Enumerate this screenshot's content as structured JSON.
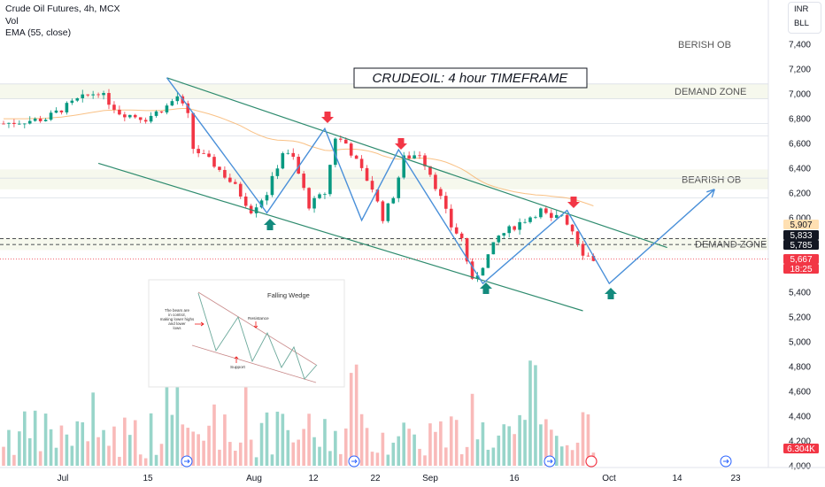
{
  "legend": {
    "symbol": "Crude Oil Futures, 4h, MCX",
    "vol": "Vol",
    "ema": "EMA (55, close)"
  },
  "toolbar": {
    "currency": "INR",
    "lot": "BLL"
  },
  "chart_data": {
    "type": "candlestick",
    "title": "CRUDEOIL: 4 hour TIMEFRAME",
    "y_ticks": [
      4000,
      4200,
      4400,
      4600,
      4800,
      5000,
      5200,
      5400,
      5600,
      5800,
      6000,
      6200,
      6400,
      6600,
      6800,
      7000,
      7200,
      7400
    ],
    "x_ticks": [
      "Jul",
      "15",
      "Aug",
      "12",
      "22",
      "Sep",
      "16",
      "Oct",
      "14",
      "23"
    ],
    "zones": [
      {
        "label": "BERISH OB",
        "y": [
          7400,
          7400
        ]
      },
      {
        "label": "DEMAND ZONE",
        "y": [
          6960,
          7080
        ]
      },
      {
        "label": "BEARISH OB",
        "y": [
          6230,
          6390
        ]
      },
      {
        "label": "DEMAND ZONE",
        "y": [
          5740,
          5840
        ]
      }
    ],
    "price_labels": [
      {
        "value": "5,907",
        "color": "#ffe0b2",
        "text_color": "#131722"
      },
      {
        "value": "5,833",
        "color": "#131722",
        "text_color": "#ffffff"
      },
      {
        "value": "5,785",
        "color": "#131722",
        "text_color": "#ffffff"
      },
      {
        "value": "5,667",
        "color": "#f23645",
        "text_color": "#ffffff"
      },
      {
        "value": "18:25",
        "color": "#f23645",
        "text_color": "#ffffff"
      },
      {
        "value": "6.304K",
        "color": "#f23645",
        "text_color": "#ffffff"
      }
    ],
    "swing_path": [
      [
        2,
        7130
      ],
      [
        17,
        6040
      ],
      [
        29,
        6680
      ],
      [
        37,
        5970
      ],
      [
        48,
        6550
      ],
      [
        62,
        5470
      ],
      [
        81,
        6060
      ],
      [
        89,
        5470
      ],
      [
        108,
        6230
      ]
    ],
    "channel_upper": [
      [
        2,
        7120
      ],
      [
        112,
        5770
      ]
    ],
    "channel_lower": [
      [
        2,
        6460
      ],
      [
        112,
        5250
      ]
    ],
    "sell_arrows": [
      [
        29,
        6750
      ],
      [
        48,
        6590
      ],
      [
        84,
        6080
      ]
    ],
    "buy_arrows": [
      [
        17,
        6000
      ],
      [
        62,
        5430
      ],
      [
        89,
        5420
      ]
    ],
    "inset": {
      "title": "Falling Wedge",
      "note": "The bears are in control, making lower highs and lower lows",
      "resistance": "Resistance",
      "support": "Support"
    }
  }
}
